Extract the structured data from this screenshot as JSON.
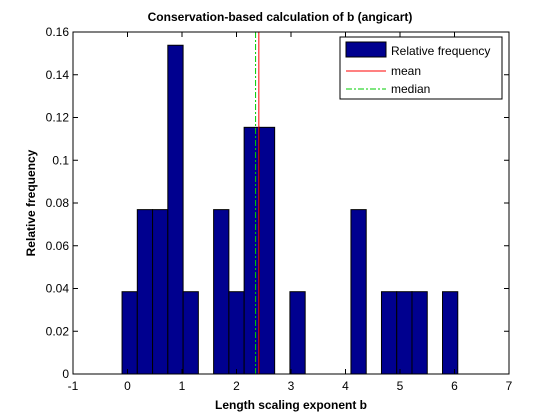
{
  "chart_data": {
    "type": "bar",
    "title": "Conservation-based calculation of b (angicart)",
    "xlabel": "Length scaling exponent b",
    "ylabel": "Relative frequency",
    "xlim": [
      -1,
      7
    ],
    "ylim": [
      0,
      0.16
    ],
    "xticks": [
      "-1",
      "0",
      "1",
      "2",
      "3",
      "4",
      "5",
      "6",
      "7"
    ],
    "yticks": [
      "0",
      "0.02",
      "0.04",
      "0.06",
      "0.08",
      "0.1",
      "0.12",
      "0.14",
      "0.16"
    ],
    "bin_width": 0.28,
    "bars": [
      {
        "x": 0.04,
        "value": 0.0385
      },
      {
        "x": 0.32,
        "value": 0.0769
      },
      {
        "x": 0.6,
        "value": 0.0769
      },
      {
        "x": 0.88,
        "value": 0.1538
      },
      {
        "x": 1.16,
        "value": 0.0385
      },
      {
        "x": 1.72,
        "value": 0.0769
      },
      {
        "x": 2.0,
        "value": 0.0385
      },
      {
        "x": 2.28,
        "value": 0.1154
      },
      {
        "x": 2.56,
        "value": 0.1154
      },
      {
        "x": 3.12,
        "value": 0.0385
      },
      {
        "x": 4.24,
        "value": 0.0769
      },
      {
        "x": 4.8,
        "value": 0.0385
      },
      {
        "x": 5.08,
        "value": 0.0385
      },
      {
        "x": 5.36,
        "value": 0.0385
      },
      {
        "x": 5.92,
        "value": 0.0385
      }
    ],
    "mean": 2.41,
    "median": 2.35,
    "legend": {
      "placement": "top-right",
      "entries": [
        "Relative frequency",
        "mean",
        "median"
      ]
    },
    "colors": {
      "bar_fill": "#00008f",
      "bar_edge": "#000000",
      "mean": "#ff0000",
      "median": "#00cc00"
    },
    "grid": false
  }
}
